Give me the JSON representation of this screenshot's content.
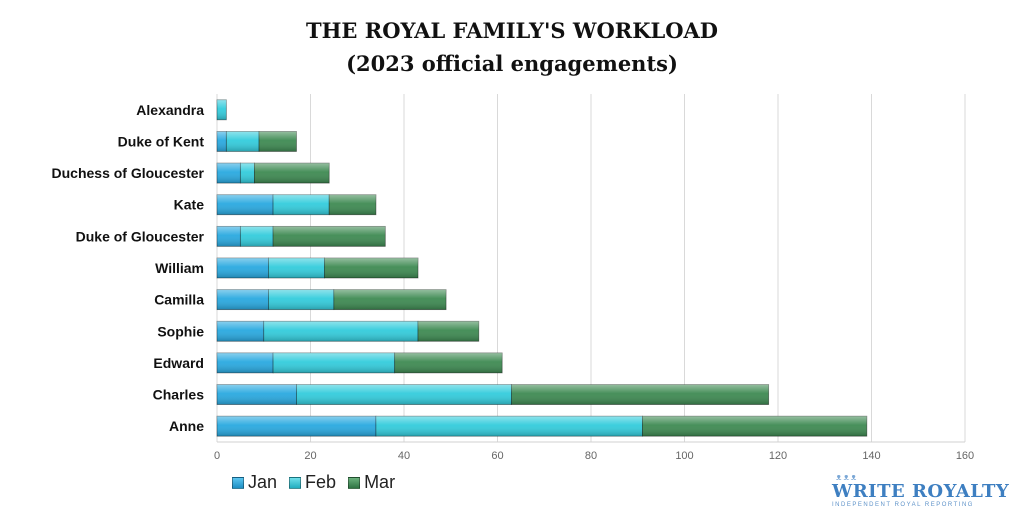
{
  "chart_data": {
    "type": "bar",
    "orientation": "horizontal",
    "stacked": true,
    "title_line1": "THE ROYAL FAMILY'S WORKLOAD",
    "title_line2": "(2023 official engagements)",
    "categories": [
      "Alexandra",
      "Duke of Kent",
      "Duchess of Gloucester",
      "Kate",
      "Duke of Gloucester",
      "William",
      "Camilla",
      "Sophie",
      "Edward",
      "Charles",
      "Anne"
    ],
    "series": [
      {
        "name": "Jan",
        "color": "#29a9e0",
        "values": [
          0,
          2,
          5,
          12,
          5,
          11,
          11,
          10,
          12,
          17,
          34
        ]
      },
      {
        "name": "Feb",
        "color": "#33ccdc",
        "values": [
          2,
          7,
          3,
          12,
          7,
          12,
          14,
          33,
          26,
          46,
          57
        ]
      },
      {
        "name": "Mar",
        "color": "#3e8a52",
        "values": [
          0,
          8,
          16,
          10,
          24,
          20,
          24,
          13,
          23,
          55,
          48
        ]
      }
    ],
    "xlim": [
      0,
      160
    ],
    "xticks": [
      "0",
      "20",
      "40",
      "60",
      "80",
      "100",
      "120",
      "140",
      "160"
    ],
    "grid": true,
    "legend_position": "bottom-left"
  },
  "logo": {
    "crown": "ᴥᴥᴥ",
    "name": "WRITE ROYALTY",
    "tagline": "INDEPENDENT ROYAL REPORTING"
  }
}
